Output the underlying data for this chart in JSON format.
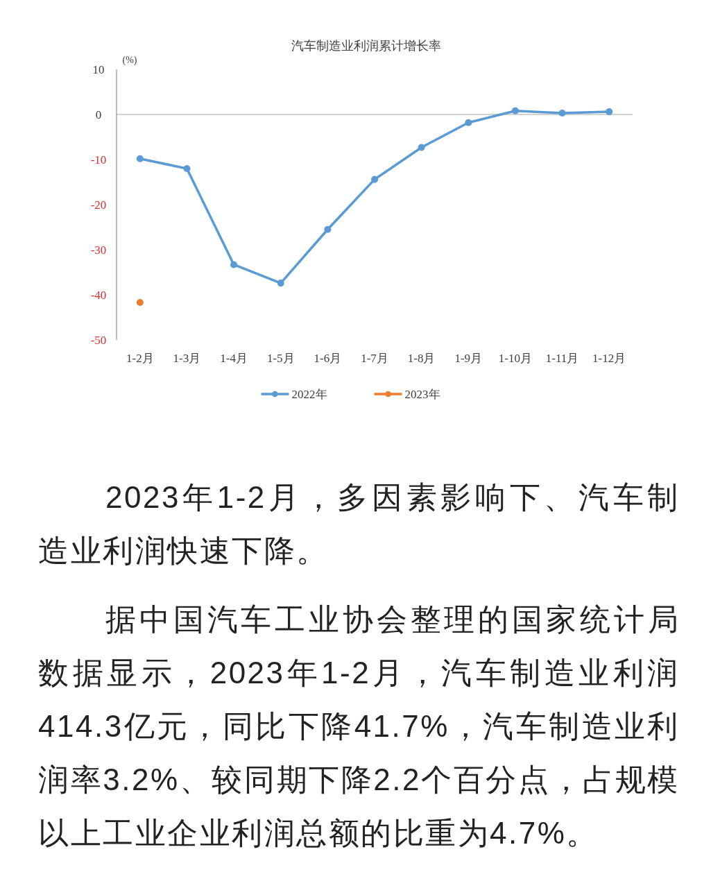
{
  "chart_data": {
    "type": "line",
    "title": "汽车制造业利润累计增长率",
    "ylabel": "(%)",
    "categories": [
      "1-2月",
      "1-3月",
      "1-4月",
      "1-5月",
      "1-6月",
      "1-7月",
      "1-8月",
      "1-9月",
      "1-10月",
      "1-11月",
      "1-12月"
    ],
    "series": [
      {
        "name": "2022年",
        "color": "#5b9bd5",
        "values": [
          -9.8,
          -12.0,
          -33.3,
          -37.4,
          -25.5,
          -14.4,
          -7.3,
          -1.8,
          0.8,
          0.3,
          0.6
        ]
      },
      {
        "name": "2023年",
        "color": "#ed7d31",
        "values": [
          -41.7,
          null,
          null,
          null,
          null,
          null,
          null,
          null,
          null,
          null,
          null
        ]
      }
    ],
    "ylim": [
      -50,
      10
    ],
    "yticks": [
      -50,
      -40,
      -30,
      -20,
      -10,
      0,
      10
    ],
    "grid": false,
    "legend": "bottom",
    "marker": "circle",
    "line_style": "solid",
    "ref_lines": [
      {
        "axis": "y",
        "value": 0,
        "color": "#a6a6a6"
      }
    ],
    "annotations": [
      "2023年1-2月，多因素影响下、汽车制造业利润快速下降。",
      "据中国汽车工业协会整理的国家统计局数据显示，2023年1-2月，汽车制造业利润414.3亿元，同比下降41.7%，汽车制造业利润率3.2%、较同期下降2.2个百分点，占规模以上工业企业利润总额的比重为4.7%。"
    ]
  }
}
